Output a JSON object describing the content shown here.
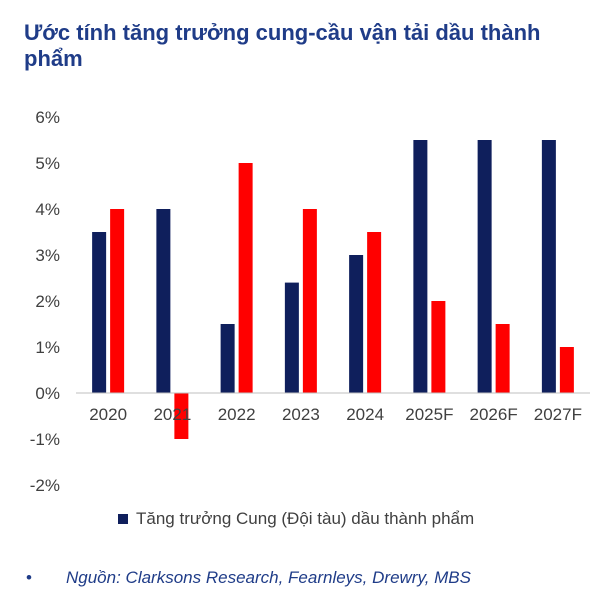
{
  "chart_data": {
    "type": "bar",
    "title": "Ước tính tăng trưởng cung-cầu vận tải dầu thành phẩm",
    "categories": [
      "2020",
      "2021",
      "2022",
      "2023",
      "2024",
      "2025F",
      "2026F",
      "2027F"
    ],
    "series": [
      {
        "name": "Tăng trưởng Cung (Đội tàu) dầu thành phẩm",
        "color": "#0f1f5c",
        "values": [
          3.5,
          4.0,
          1.5,
          2.4,
          3.0,
          5.5,
          5.5,
          5.5
        ]
      },
      {
        "color": "#ff0000",
        "values": [
          4.0,
          -1.0,
          5.0,
          4.0,
          3.5,
          2.0,
          1.5,
          1.0
        ]
      }
    ],
    "ylim": [
      -2,
      6
    ],
    "yticks": [
      "-2%",
      "-1%",
      "0%",
      "1%",
      "2%",
      "3%",
      "4%",
      "5%",
      "6%"
    ],
    "ytick_values": [
      -2,
      -1,
      0,
      1,
      2,
      3,
      4,
      5,
      6
    ],
    "grid": false,
    "legend_position": "bottom"
  },
  "legend": {
    "label": "Tăng trưởng Cung (Đội tàu) dầu thành phẩm",
    "color": "#0f1f5c"
  },
  "source": {
    "bullet": "•",
    "text": "Nguồn: Clarksons Research, Fearnleys, Drewry, MBS"
  }
}
